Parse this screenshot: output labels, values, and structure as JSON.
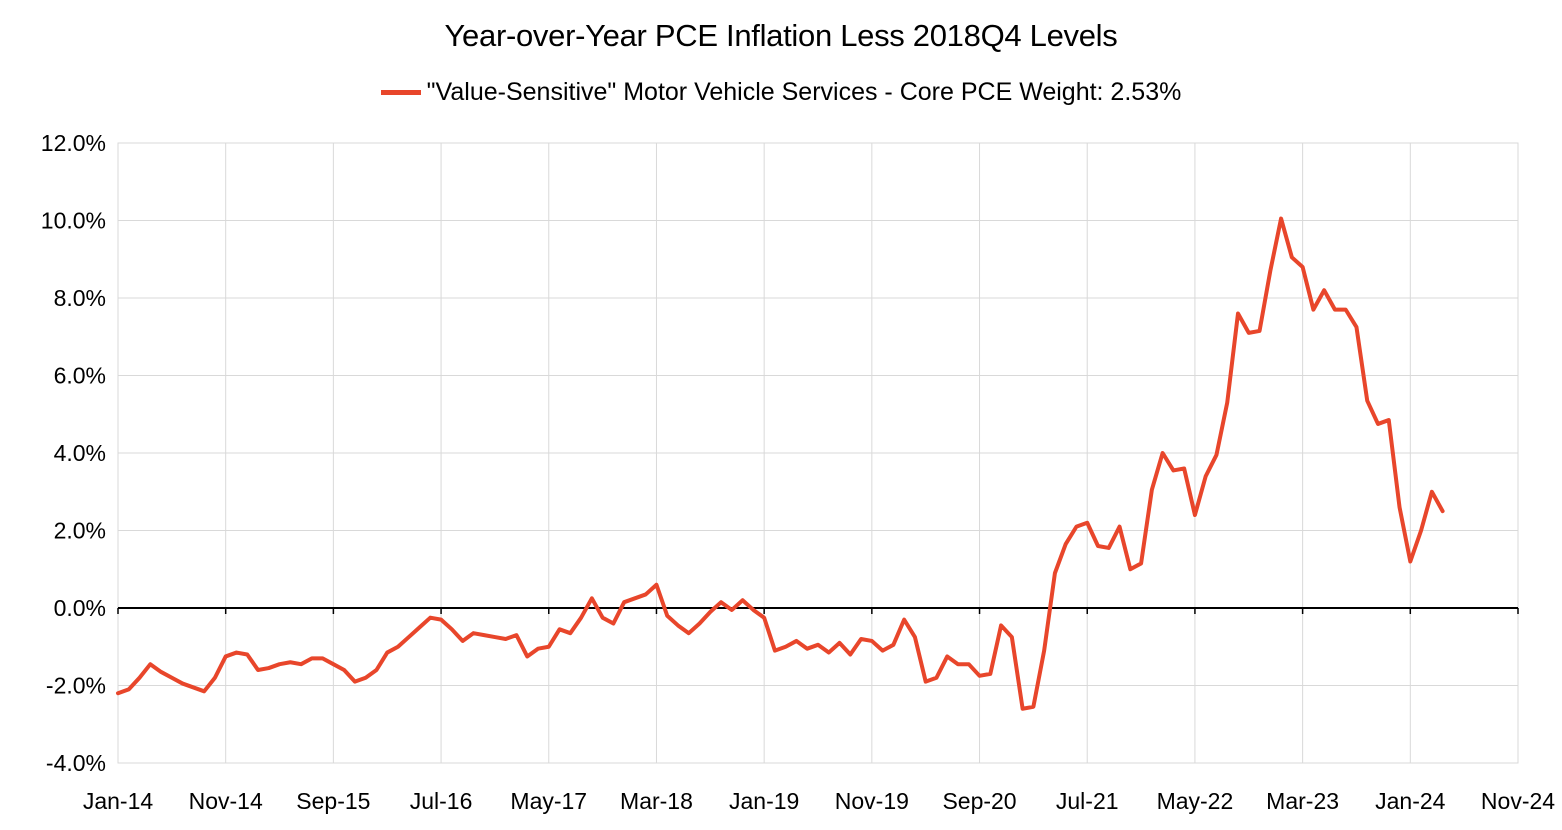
{
  "chart_data": {
    "type": "line",
    "title": "Year-over-Year PCE Inflation Less 2018Q4 Levels",
    "xlabel": "",
    "ylabel": "",
    "ylim": [
      -4.0,
      12.0
    ],
    "y_ticks": [
      "12.0%",
      "10.0%",
      "8.0%",
      "6.0%",
      "4.0%",
      "2.0%",
      "0.0%",
      "-2.0%",
      "-4.0%"
    ],
    "y_tick_values": [
      12,
      10,
      8,
      6,
      4,
      2,
      0,
      -2,
      -4
    ],
    "x_tick_labels": [
      "Jan-14",
      "Nov-14",
      "Sep-15",
      "Jul-16",
      "May-17",
      "Mar-18",
      "Jan-19",
      "Nov-19",
      "Sep-20",
      "Jul-21",
      "May-22",
      "Mar-23",
      "Jan-24",
      "Nov-24"
    ],
    "x_tick_month_index": [
      0,
      10,
      20,
      30,
      40,
      50,
      60,
      70,
      80,
      90,
      100,
      110,
      120,
      130
    ],
    "x_range_months": [
      0,
      130
    ],
    "grid": true,
    "legend_position": "top-center",
    "series": [
      {
        "name": "\"Value-Sensitive\" Motor Vehicle Services - Core PCE Weight: 2.53%",
        "color": "#E8462B",
        "start": "Jan-14",
        "values": [
          -2.2,
          -2.1,
          -1.8,
          -1.45,
          -1.65,
          -1.8,
          -1.95,
          -2.05,
          -2.15,
          -1.8,
          -1.25,
          -1.15,
          -1.2,
          -1.6,
          -1.55,
          -1.45,
          -1.4,
          -1.45,
          -1.3,
          -1.3,
          -1.45,
          -1.6,
          -1.9,
          -1.8,
          -1.6,
          -1.15,
          -1.0,
          -0.75,
          -0.5,
          -0.25,
          -0.3,
          -0.55,
          -0.85,
          -0.65,
          -0.7,
          -0.75,
          -0.8,
          -0.7,
          -1.25,
          -1.05,
          -1.0,
          -0.55,
          -0.65,
          -0.25,
          0.25,
          -0.25,
          -0.4,
          0.15,
          0.25,
          0.35,
          0.6,
          -0.2,
          -0.45,
          -0.65,
          -0.4,
          -0.1,
          0.15,
          -0.05,
          0.2,
          -0.05,
          -0.25,
          -1.1,
          -1.0,
          -0.85,
          -1.05,
          -0.95,
          -1.15,
          -0.9,
          -1.2,
          -0.8,
          -0.85,
          -1.1,
          -0.95,
          -0.3,
          -0.75,
          -1.9,
          -1.8,
          -1.25,
          -1.45,
          -1.45,
          -1.75,
          -1.7,
          -0.45,
          -0.75,
          -2.6,
          -2.55,
          -1.1,
          0.9,
          1.65,
          2.1,
          2.2,
          1.6,
          1.55,
          2.1,
          1.0,
          1.15,
          3.05,
          4.0,
          3.55,
          3.6,
          2.4,
          3.4,
          3.95,
          5.3,
          7.6,
          7.1,
          7.15,
          8.7,
          10.05,
          9.05,
          8.8,
          7.7,
          8.2,
          7.7,
          7.7,
          7.25,
          5.35,
          4.75,
          4.85,
          2.6,
          1.2,
          2.0,
          3.0,
          2.5
        ]
      }
    ]
  }
}
